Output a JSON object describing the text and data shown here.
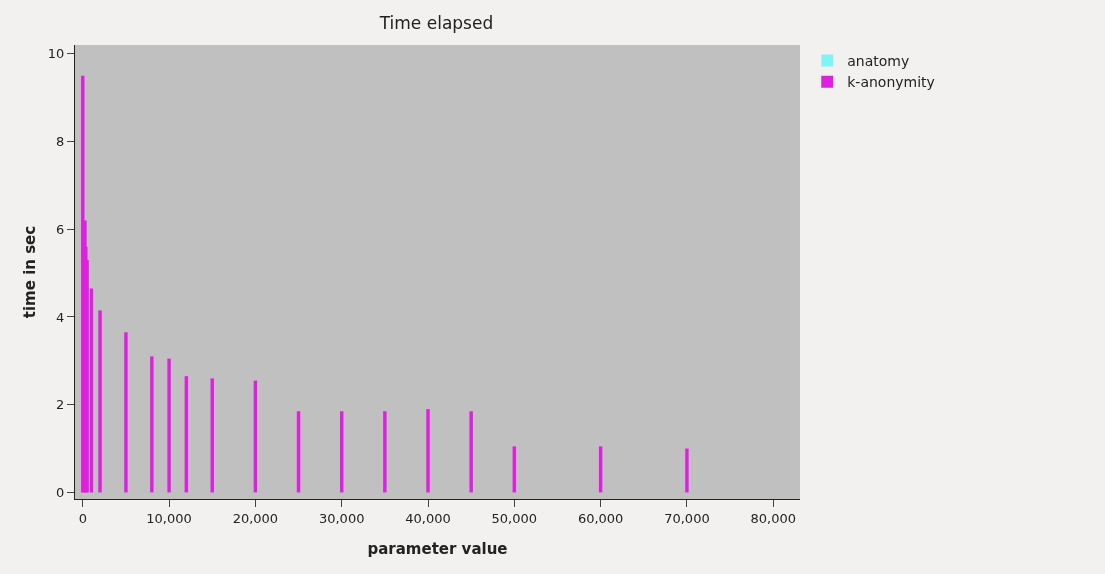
{
  "chart_data": {
    "type": "bar",
    "title": "Time elapsed",
    "xlabel": "parameter value",
    "ylabel": "time in sec",
    "x": [
      0,
      250,
      350,
      500,
      1000,
      2000,
      5000,
      8000,
      10000,
      12000,
      15000,
      20000,
      25000,
      30000,
      35000,
      40000,
      45000,
      50000,
      60000,
      70000
    ],
    "series": [
      {
        "name": "anatomy",
        "color": "#80f4f4",
        "values": [
          null,
          null,
          null,
          null,
          null,
          null,
          null,
          null,
          null,
          null,
          null,
          null,
          null,
          null,
          null,
          null,
          null,
          null,
          null,
          null
        ]
      },
      {
        "name": "k-anonymity",
        "color": "#e020e0",
        "values": [
          9.5,
          6.2,
          5.6,
          5.3,
          4.65,
          4.15,
          3.65,
          3.1,
          3.05,
          2.65,
          2.6,
          2.55,
          1.85,
          1.85,
          1.85,
          1.9,
          1.85,
          1.05,
          1.05,
          1.0
        ]
      }
    ],
    "xlim": [
      -900,
      83100
    ],
    "xticks": [
      {
        "value": 0,
        "label": "0"
      },
      {
        "value": 10000,
        "label": "10,000"
      },
      {
        "value": 20000,
        "label": "20,000"
      },
      {
        "value": 30000,
        "label": "30,000"
      },
      {
        "value": 40000,
        "label": "40,000"
      },
      {
        "value": 50000,
        "label": "50,000"
      },
      {
        "value": 60000,
        "label": "60,000"
      },
      {
        "value": 70000,
        "label": "70,000"
      },
      {
        "value": 80000,
        "label": "80,000"
      }
    ],
    "ylim": [
      -0.15,
      10.2
    ],
    "yticks": [
      0,
      2,
      4,
      6,
      8,
      10
    ],
    "grid": false,
    "legend": "top right"
  }
}
